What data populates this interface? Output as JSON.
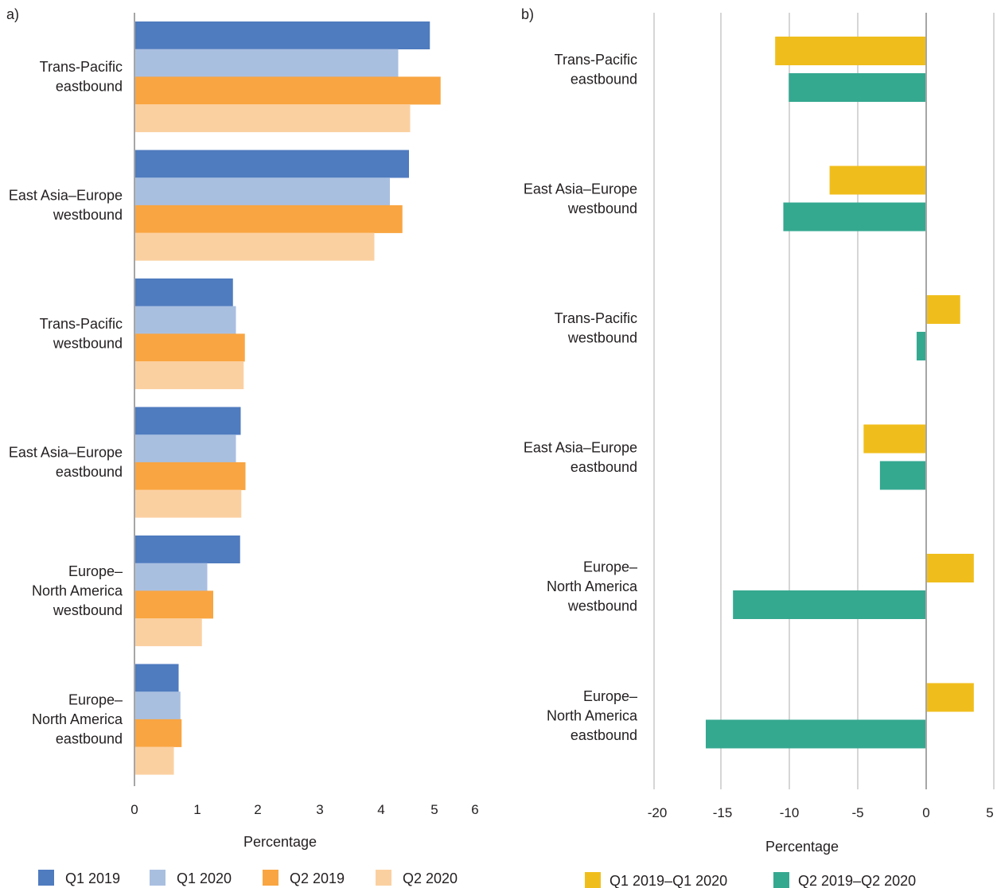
{
  "chart_data": [
    {
      "panel_label": "a)",
      "type": "bar",
      "orientation": "horizontal",
      "categories": [
        [
          "Trans-Pacific",
          "eastbound"
        ],
        [
          "East Asia–Europe",
          "westbound"
        ],
        [
          "Trans-Pacific",
          "westbound"
        ],
        [
          "East Asia–Europe",
          "eastbound"
        ],
        [
          "Europe–",
          "North America",
          "westbound"
        ],
        [
          "Europe–",
          "North America",
          "eastbound"
        ]
      ],
      "series": [
        {
          "name": "Q1 2019",
          "color": "#4f7bbf",
          "values": [
            4.95,
            4.6,
            1.65,
            1.78,
            1.77,
            0.74
          ]
        },
        {
          "name": "Q1 2020",
          "color": "#a9bfe0",
          "values": [
            4.42,
            4.28,
            1.7,
            1.7,
            1.22,
            0.77
          ]
        },
        {
          "name": "Q2 2019",
          "color": "#f9a541",
          "values": [
            5.13,
            4.49,
            1.85,
            1.86,
            1.32,
            0.79
          ]
        },
        {
          "name": "Q2 2020",
          "color": "#fbd0a1",
          "values": [
            4.62,
            4.02,
            1.83,
            1.79,
            1.13,
            0.66
          ]
        }
      ],
      "xticks": [
        "0",
        "1",
        "2",
        "3",
        "4",
        "5",
        "6"
      ],
      "xlim": [
        0,
        6
      ],
      "xlabel": "Percentage",
      "ylabel": "",
      "grid": false,
      "legend_position": "bottom"
    },
    {
      "panel_label": "b)",
      "type": "bar",
      "orientation": "horizontal",
      "categories": [
        [
          "Trans-Pacific",
          "eastbound"
        ],
        [
          "East Asia–Europe",
          "westbound"
        ],
        [
          "Trans-Pacific",
          "westbound"
        ],
        [
          "East Asia–Europe",
          "eastbound"
        ],
        [
          "Europe–",
          "North America",
          "westbound"
        ],
        [
          "Europe–",
          "North America",
          "eastbound"
        ]
      ],
      "series": [
        {
          "name": "Q1 2019–Q1 2020",
          "color": "#f0be1c",
          "values": [
            -11.1,
            -7.1,
            2.5,
            -4.6,
            3.5,
            3.5
          ]
        },
        {
          "name": "Q2 2019–Q2 2020",
          "color": "#35a890",
          "values": [
            -10.1,
            -10.5,
            -0.7,
            -3.4,
            -14.2,
            -16.2
          ]
        }
      ],
      "xticks": [
        "-20",
        "-15",
        "-10",
        "-5",
        "0",
        "5"
      ],
      "xlim": [
        -20,
        5
      ],
      "xlabel": "Percentage",
      "ylabel": "",
      "grid": true,
      "legend_position": "bottom"
    }
  ]
}
